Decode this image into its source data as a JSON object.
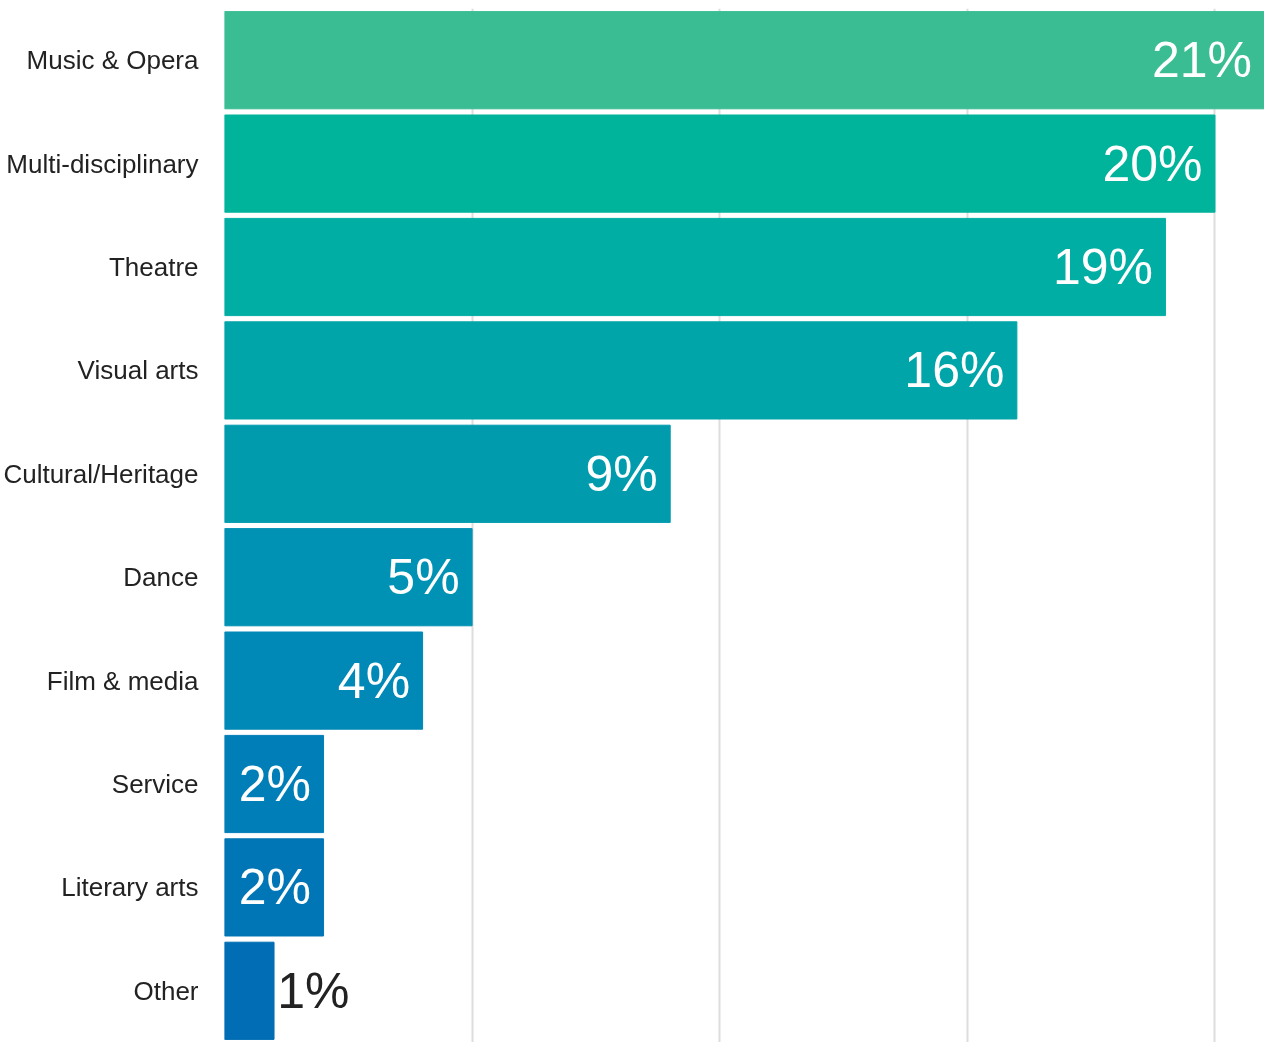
{
  "chart_data": {
    "type": "bar",
    "orientation": "horizontal",
    "categories": [
      "Music & Opera",
      "Multi-disciplinary",
      "Theatre",
      "Visual arts",
      "Cultural/Heritage",
      "Dance",
      "Film & media",
      "Service",
      "Literary arts",
      "Other"
    ],
    "values": [
      21,
      20,
      19,
      16,
      9,
      5,
      4,
      2,
      2,
      1
    ],
    "value_labels": [
      "21%",
      "20%",
      "19%",
      "16%",
      "9%",
      "5%",
      "4%",
      "2%",
      "2%",
      "1%"
    ],
    "colors": [
      "#3abd93",
      "#00b39b",
      "#00aea4",
      "#00a5a9",
      "#009cae",
      "#0092b4",
      "#0088b6",
      "#007eb8",
      "#0076b6",
      "#006db5"
    ],
    "xlim": [
      0,
      21
    ],
    "grid": "x",
    "tick_labels": "y"
  }
}
